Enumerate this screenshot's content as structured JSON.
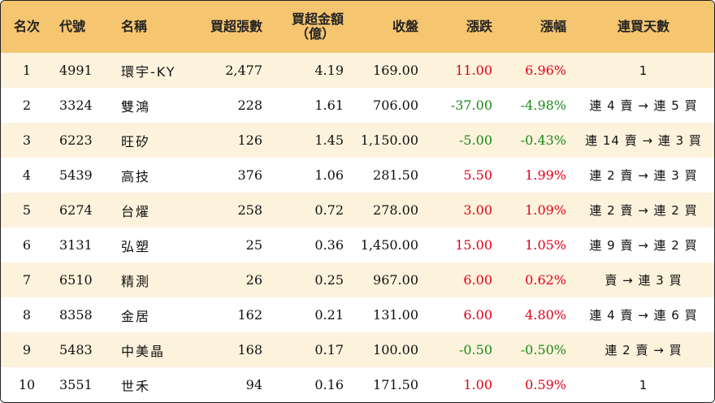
{
  "headers": [
    "名次",
    "代號",
    "名稱",
    "買超張數",
    "買超金額\n（億）",
    "收盤",
    "漲跌",
    "漲幅",
    "連買天數"
  ],
  "header_amount_line1": "買超金額",
  "header_amount_line2": "（億）",
  "colors": {
    "header_bg": "#f6c56f",
    "odd_row_bg": "#fdf3dd",
    "up": "#e3001b",
    "down": "#1a8a1a"
  },
  "rows": [
    {
      "rank": "1",
      "code": "4991",
      "name": "環宇-KY",
      "shares": "2,477",
      "amount": "4.19",
      "close": "169.00",
      "change": "11.00",
      "pct": "6.96%",
      "dir": "up",
      "streak": "1"
    },
    {
      "rank": "2",
      "code": "3324",
      "name": "雙鴻",
      "shares": "228",
      "amount": "1.61",
      "close": "706.00",
      "change": "-37.00",
      "pct": "-4.98%",
      "dir": "down",
      "streak": "連 4 賣 → 連 5 買"
    },
    {
      "rank": "3",
      "code": "6223",
      "name": "旺矽",
      "shares": "126",
      "amount": "1.45",
      "close": "1,150.00",
      "change": "-5.00",
      "pct": "-0.43%",
      "dir": "down",
      "streak": "連 14 賣 → 連 3 買"
    },
    {
      "rank": "4",
      "code": "5439",
      "name": "高技",
      "shares": "376",
      "amount": "1.06",
      "close": "281.50",
      "change": "5.50",
      "pct": "1.99%",
      "dir": "up",
      "streak": "連 2 賣 → 連 3 買"
    },
    {
      "rank": "5",
      "code": "6274",
      "name": "台燿",
      "shares": "258",
      "amount": "0.72",
      "close": "278.00",
      "change": "3.00",
      "pct": "1.09%",
      "dir": "up",
      "streak": "連 2 賣 → 連 2 買"
    },
    {
      "rank": "6",
      "code": "3131",
      "name": "弘塑",
      "shares": "25",
      "amount": "0.36",
      "close": "1,450.00",
      "change": "15.00",
      "pct": "1.05%",
      "dir": "up",
      "streak": "連 9 賣 → 連 2 買"
    },
    {
      "rank": "7",
      "code": "6510",
      "name": "精測",
      "shares": "26",
      "amount": "0.25",
      "close": "967.00",
      "change": "6.00",
      "pct": "0.62%",
      "dir": "up",
      "streak": "賣 → 連 3 買"
    },
    {
      "rank": "8",
      "code": "8358",
      "name": "金居",
      "shares": "162",
      "amount": "0.21",
      "close": "131.00",
      "change": "6.00",
      "pct": "4.80%",
      "dir": "up",
      "streak": "連 4 賣 → 連 6 買"
    },
    {
      "rank": "9",
      "code": "5483",
      "name": "中美晶",
      "shares": "168",
      "amount": "0.17",
      "close": "100.00",
      "change": "-0.50",
      "pct": "-0.50%",
      "dir": "down",
      "streak": "連 2 賣 → 買"
    },
    {
      "rank": "10",
      "code": "3551",
      "name": "世禾",
      "shares": "94",
      "amount": "0.16",
      "close": "171.50",
      "change": "1.00",
      "pct": "0.59%",
      "dir": "up",
      "streak": "1"
    }
  ]
}
